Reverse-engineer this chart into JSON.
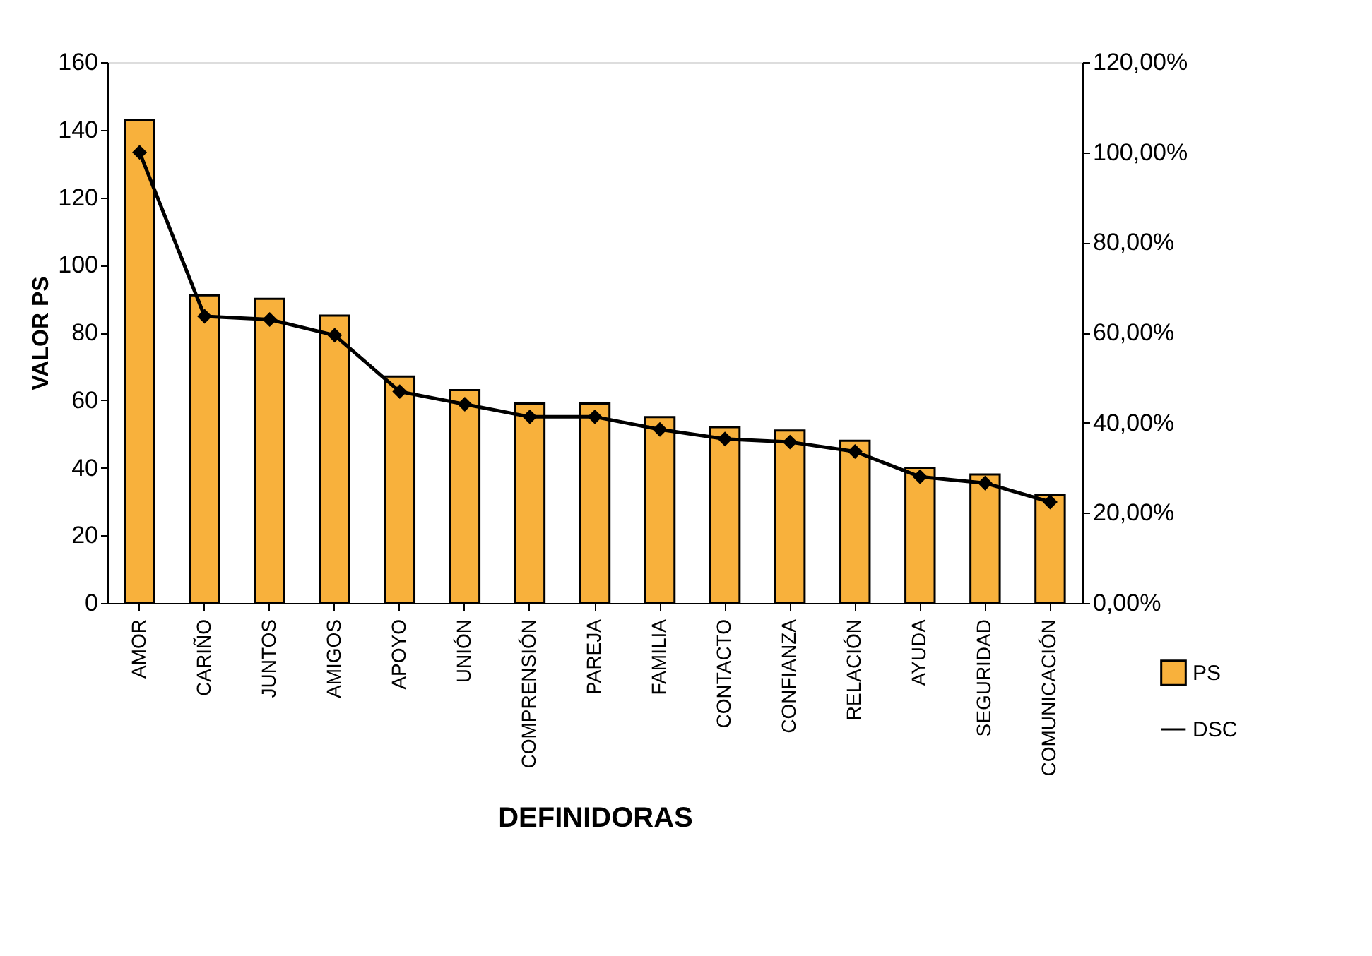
{
  "chart_data": {
    "type": "bar",
    "xlabel": "DEFINIDORAS",
    "ylabel": "VALOR PS",
    "categories": [
      "AMOR",
      "CARIÑO",
      "JUNTOS",
      "AMIGOS",
      "APOYO",
      "UNIÓN",
      "COMPRENSIÓN",
      "PAREJA",
      "FAMILIA",
      "CONTACTO",
      "CONFIANZA",
      "RELACIÓN",
      "AYUDA",
      "SEGURIDAD",
      "COMUNICACIÓN"
    ],
    "series": [
      {
        "name": "PS",
        "color": "#f8b13c",
        "values": [
          143,
          91,
          90,
          85,
          67,
          63,
          59,
          59,
          55,
          52,
          51,
          48,
          40,
          38,
          32
        ]
      },
      {
        "name": "DSC",
        "type": "line",
        "axis": "y2",
        "color": "#000000",
        "values": [
          100,
          63.6,
          62.9,
          59.4,
          46.9,
          44.1,
          41.3,
          41.3,
          38.5,
          36.4,
          35.7,
          33.6,
          28,
          26.6,
          22.4
        ]
      }
    ],
    "ylim": [
      0,
      160
    ],
    "yticks": [
      0,
      20,
      40,
      60,
      80,
      100,
      120,
      140,
      160
    ],
    "y2lim": [
      0,
      120
    ],
    "y2ticks": [
      {
        "value": 0,
        "label": "0,00%"
      },
      {
        "value": 20,
        "label": "20,00%"
      },
      {
        "value": 40,
        "label": "40,00%"
      },
      {
        "value": 60,
        "label": "60,00%"
      },
      {
        "value": 80,
        "label": "80,00%"
      },
      {
        "value": 100,
        "label": "100,00%"
      },
      {
        "value": 120,
        "label": "120,00%"
      }
    ],
    "marker": "diamond",
    "line_style": "solid",
    "grid": false,
    "legend": "bottom right"
  }
}
